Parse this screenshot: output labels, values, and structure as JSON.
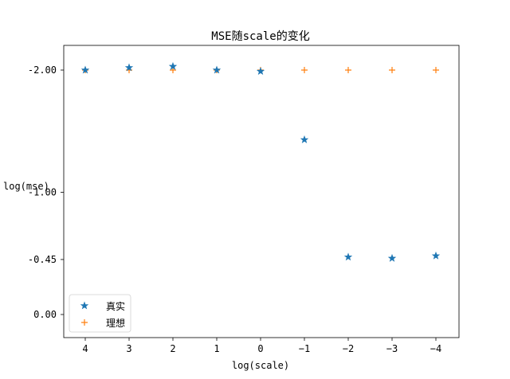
{
  "chart_data": {
    "type": "scatter",
    "title": "MSE随scale的变化",
    "xlabel": "log(scale)",
    "ylabel": "log(mse)",
    "x_categories": [
      "4",
      "3",
      "2",
      "1",
      "0",
      "−1",
      "−2",
      "−3",
      "−4"
    ],
    "y_ticks": [
      {
        "value": -2.0,
        "label": "-2.00"
      },
      {
        "value": -1.0,
        "label": "-1.00"
      },
      {
        "value": -0.45,
        "label": "-0.45"
      },
      {
        "value": 0.0,
        "label": "0.00"
      }
    ],
    "ylim": [
      -2.2,
      0.2
    ],
    "y_inverted": true,
    "grid": false,
    "legend_position": "lower-left",
    "series": [
      {
        "name": "真实",
        "marker": "star",
        "color": "#1f77b4",
        "values": [
          -2.0,
          -2.02,
          -2.03,
          -2.0,
          -1.99,
          -1.43,
          -0.47,
          -0.46,
          -0.48
        ]
      },
      {
        "name": "理想",
        "marker": "plus",
        "color": "#ff7f0e",
        "values": [
          -2.0,
          -2.0,
          -2.0,
          -2.0,
          -2.0,
          -2.0,
          -2.0,
          -2.0,
          -2.0
        ]
      }
    ]
  }
}
